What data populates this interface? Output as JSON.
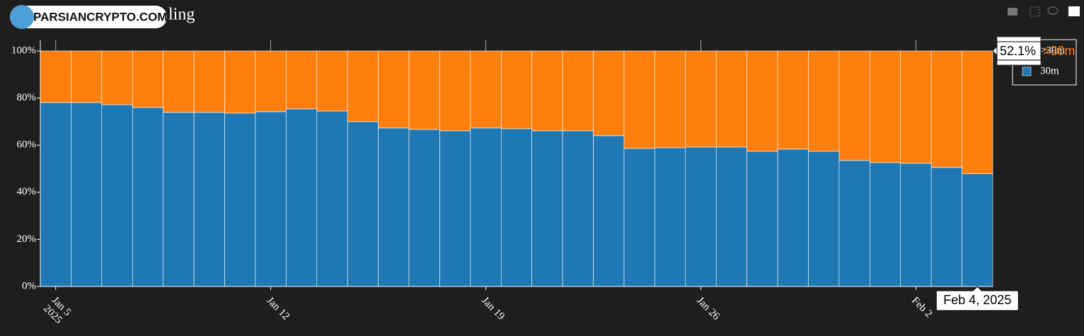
{
  "chart_data": {
    "type": "stacked_bar",
    "watermark": "PARSIANCRYPTO.COM",
    "title": "ling",
    "x": [
      "2025-01-05",
      "2025-01-06",
      "2025-01-07",
      "2025-01-08",
      "2025-01-09",
      "2025-01-10",
      "2025-01-11",
      "2025-01-12",
      "2025-01-13",
      "2025-01-14",
      "2025-01-15",
      "2025-01-16",
      "2025-01-17",
      "2025-01-18",
      "2025-01-19",
      "2025-01-20",
      "2025-01-21",
      "2025-01-22",
      "2025-01-23",
      "2025-01-24",
      "2025-01-25",
      "2025-01-26",
      "2025-01-27",
      "2025-01-28",
      "2025-01-29",
      "2025-01-30",
      "2025-01-31",
      "2025-02-01",
      "2025-02-02",
      "2025-02-03",
      "2025-02-04"
    ],
    "xlim": [
      "2025-01-04T12:00:00Z",
      "2025-02-04T12:00:00Z"
    ],
    "xticks": [
      {
        "value": "2025-01-05",
        "label": "Jan 5\n2025"
      },
      {
        "value": "2025-01-12",
        "label": "Jan 12"
      },
      {
        "value": "2025-01-19",
        "label": "Jan 19"
      },
      {
        "value": "2025-01-26",
        "label": "Jan 26"
      },
      {
        "value": "2025-02-02",
        "label": "Feb 2"
      }
    ],
    "ylim": [
      0,
      100
    ],
    "yticks": [
      {
        "value": 0,
        "label": "0%"
      },
      {
        "value": 20,
        "label": "20%"
      },
      {
        "value": 40,
        "label": "40%"
      },
      {
        "value": 60,
        "label": "60%"
      },
      {
        "value": 80,
        "label": "80%"
      },
      {
        "value": 100,
        "label": "100%"
      }
    ],
    "series": [
      {
        "name": "30m",
        "color": "#1f77b4",
        "values": [
          78.1,
          78.1,
          77.2,
          76.0,
          73.9,
          73.9,
          73.6,
          74.2,
          75.4,
          74.5,
          70.0,
          67.3,
          66.7,
          66.1,
          67.3,
          67.0,
          66.1,
          66.1,
          64.0,
          58.6,
          58.9,
          59.2,
          59.2,
          57.4,
          58.3,
          57.4,
          53.5,
          52.6,
          52.3,
          50.5,
          47.9
        ]
      },
      {
        "name": ">30m",
        "color": "#ff7f0e",
        "values": [
          21.9,
          21.9,
          22.8,
          24.0,
          26.1,
          26.1,
          26.4,
          25.8,
          24.6,
          25.5,
          30.0,
          32.7,
          33.3,
          33.9,
          32.7,
          33.0,
          33.9,
          33.9,
          36.0,
          41.4,
          41.1,
          40.8,
          40.8,
          42.6,
          41.7,
          42.6,
          46.5,
          47.4,
          47.7,
          49.5,
          52.1
        ]
      }
    ],
    "legend": "top-right",
    "hover": {
      "value": 52.1,
      "value_label": "52.1%",
      "series": ">30m",
      "x_label": "Feb 4, 2025"
    }
  }
}
